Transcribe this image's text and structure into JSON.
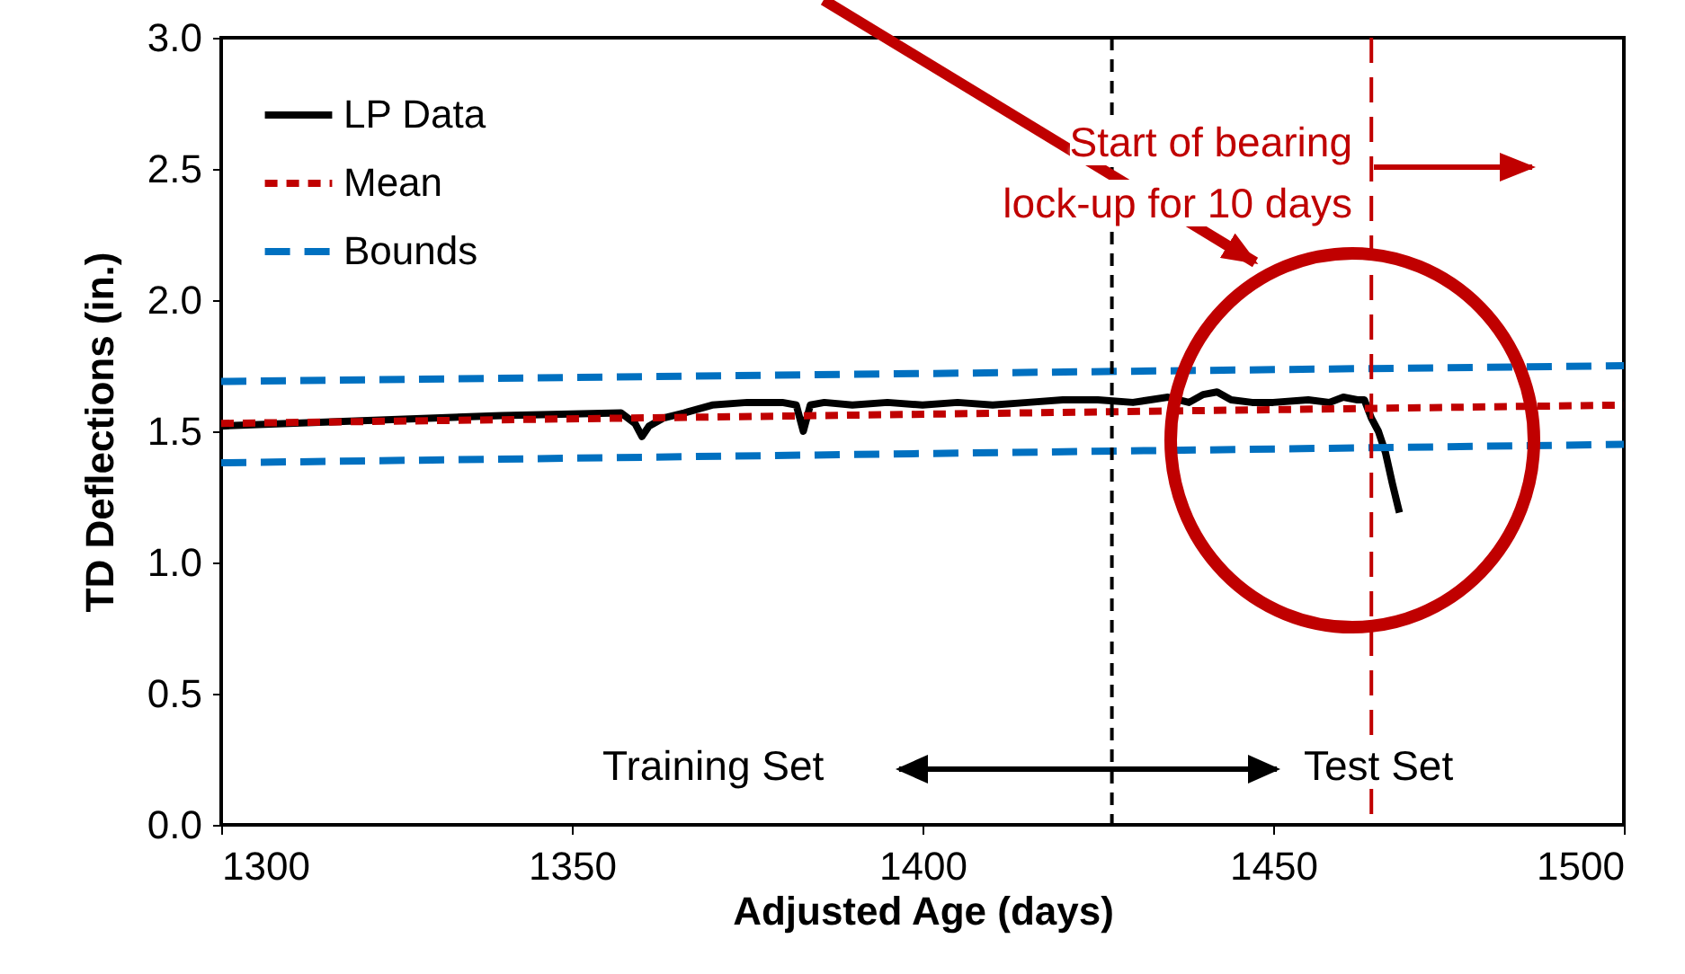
{
  "chart_data": {
    "type": "line",
    "xlabel": "Adjusted Age (days)",
    "ylabel": "TD Deflections (in.)",
    "series": [
      {
        "name": "LP Data",
        "color": "#000000",
        "line_style": "solid",
        "x": [
          1300,
          1320,
          1340,
          1357,
          1359,
          1360,
          1361,
          1363,
          1366,
          1370,
          1375,
          1380,
          1382,
          1383,
          1384,
          1386,
          1390,
          1395,
          1400,
          1405,
          1410,
          1415,
          1420,
          1425,
          1430,
          1435,
          1438,
          1440,
          1442,
          1444,
          1447,
          1450,
          1455,
          1458,
          1460,
          1462,
          1463,
          1464,
          1465,
          1466,
          1467,
          1468
        ],
        "values": [
          1.52,
          1.54,
          1.56,
          1.57,
          1.53,
          1.48,
          1.52,
          1.55,
          1.57,
          1.6,
          1.61,
          1.61,
          1.6,
          1.5,
          1.6,
          1.61,
          1.6,
          1.61,
          1.6,
          1.61,
          1.6,
          1.61,
          1.62,
          1.62,
          1.61,
          1.63,
          1.61,
          1.64,
          1.65,
          1.62,
          1.61,
          1.61,
          1.62,
          1.61,
          1.63,
          1.62,
          1.62,
          1.55,
          1.5,
          1.42,
          1.3,
          1.19
        ]
      },
      {
        "name": "Mean",
        "color": "#c00000",
        "line_style": "dotted",
        "x": [
          1300,
          1500
        ],
        "values": [
          1.53,
          1.6
        ]
      },
      {
        "name": "Bounds",
        "color": "#0070c0",
        "line_style": "dashed",
        "x": [
          1300,
          1500
        ],
        "values": [
          1.69,
          1.75
        ]
      },
      {
        "color": "#0070c0",
        "line_style": "dashed",
        "x": [
          1300,
          1500
        ],
        "values": [
          1.38,
          1.45
        ]
      }
    ],
    "xlim": [
      1300,
      1500
    ],
    "xticks": [
      1300,
      1350,
      1400,
      1450,
      1500
    ],
    "ylim": [
      0,
      3
    ],
    "yticks": [
      {
        "value": 0,
        "label": "0.0"
      },
      {
        "value": 0.5,
        "label": "0.5"
      },
      {
        "value": 1,
        "label": "1.0"
      },
      {
        "value": 1.5,
        "label": "1.5"
      },
      {
        "value": 2,
        "label": "2.0"
      },
      {
        "value": 2.5,
        "label": "2.5"
      },
      {
        "value": 3,
        "label": "3.0"
      }
    ],
    "ref_lines": [
      {
        "axis": "x",
        "value": 1427,
        "color": "#000000",
        "line_style": "dotted"
      },
      {
        "axis": "x",
        "value": 1464,
        "color": "#c00000",
        "line_style": "dashed"
      }
    ],
    "annotations": [
      "Start of bearing lock-up for 10 days",
      "Training Set",
      "Test Set"
    ],
    "legend": "top left",
    "grid": false
  }
}
